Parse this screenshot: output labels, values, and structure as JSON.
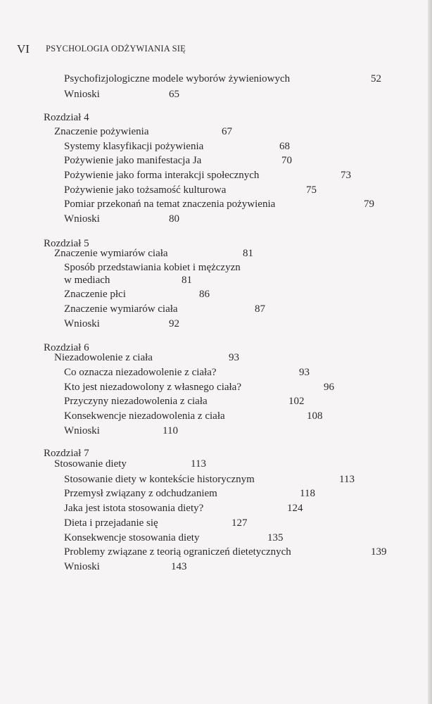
{
  "header": {
    "page_number": "VI",
    "title": "PSYCHOLOGIA ODŻYWIANIA SIĘ"
  },
  "toc": [
    {
      "title": "Psychofizjologiczne modele wyborów żywieniowych",
      "page": "52"
    },
    {
      "title": "Wnioski",
      "page": "65"
    },
    {
      "chapter": "Rozdział 4"
    },
    {
      "title": "Znaczenie pożywienia",
      "page": "67"
    },
    {
      "title": "Systemy klasyfikacji pożywienia",
      "page": "68"
    },
    {
      "title": "Pożywienie jako manifestacja Ja",
      "page": "70"
    },
    {
      "title": "Pożywienie jako forma interakcji społecznych",
      "page": "73"
    },
    {
      "title": "Pożywienie jako tożsamość kulturowa",
      "page": "75"
    },
    {
      "title": "Pomiar przekonań na temat znaczenia pożywienia",
      "page": "79"
    },
    {
      "title": "Wnioski",
      "page": "80"
    },
    {
      "chapter": "Rozdział 5"
    },
    {
      "title": "Znaczenie wymiarów ciała",
      "page": "81"
    },
    {
      "title": "Sposób przedstawiania kobiet i mężczyzn",
      "title2": "w mediach",
      "page": "81"
    },
    {
      "title": "Znaczenie płci",
      "page": "86"
    },
    {
      "title": "Znaczenie wymiarów ciała",
      "page": "87"
    },
    {
      "title": "Wnioski",
      "page": "92"
    },
    {
      "chapter": "Rozdział 6"
    },
    {
      "title": "Niezadowolenie z ciała",
      "page": "93"
    },
    {
      "title": "Co oznacza niezadowolenie z ciała?",
      "page": "93"
    },
    {
      "title": "Kto jest niezadowolony z własnego ciała?",
      "page": "96"
    },
    {
      "title": "Przyczyny niezadowolenia z ciała",
      "page": "102"
    },
    {
      "title": "Konsekwencje niezadowolenia z ciała",
      "page": "108"
    },
    {
      "title": "Wnioski",
      "page": "110"
    },
    {
      "chapter": "Rozdział 7"
    },
    {
      "title": "Stosowanie diety",
      "page": "113"
    },
    {
      "title": "Stosowanie diety w kontekście historycznym",
      "page": "113"
    },
    {
      "title": "Przemysł związany z odchudzaniem",
      "page": "118"
    },
    {
      "title": "Jaka jest istota stosowania diety?",
      "page": "124"
    },
    {
      "title": "Dieta i przejadanie się",
      "page": "127"
    },
    {
      "title": "Konsekwencje stosowania diety",
      "page": "135"
    },
    {
      "title": "Problemy związane z teorią ograniczeń dietetycznych",
      "page": "139"
    },
    {
      "title": "Wnioski",
      "page": "143"
    }
  ]
}
